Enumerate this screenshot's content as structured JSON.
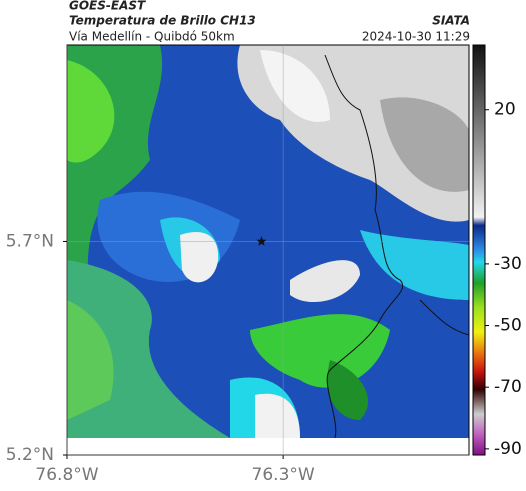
{
  "header": {
    "source": "GOES-EAST",
    "title": "Temperatura de Brillo CH13",
    "brand": "SIATA",
    "subtitle": "Vía Medellín - Quibdó 50km",
    "datetime": "2024-10-30 11:29"
  },
  "map": {
    "xlim": [
      -76.8,
      -75.87
    ],
    "ylim": [
      5.2,
      6.16
    ],
    "xticks": [
      {
        "value": -76.8,
        "label": "76.8°W"
      },
      {
        "value": -76.3,
        "label": "76.3°W"
      }
    ],
    "yticks": [
      {
        "value": 5.7,
        "label": "5.7°N"
      },
      {
        "value": 5.2,
        "label": "5.2°N"
      }
    ],
    "marker": {
      "lon": -76.35,
      "lat": 5.7
    }
  },
  "colorbar": {
    "clim": [
      -92,
      41
    ],
    "ticks": [
      20,
      -30,
      -50,
      -70,
      -90
    ]
  }
}
